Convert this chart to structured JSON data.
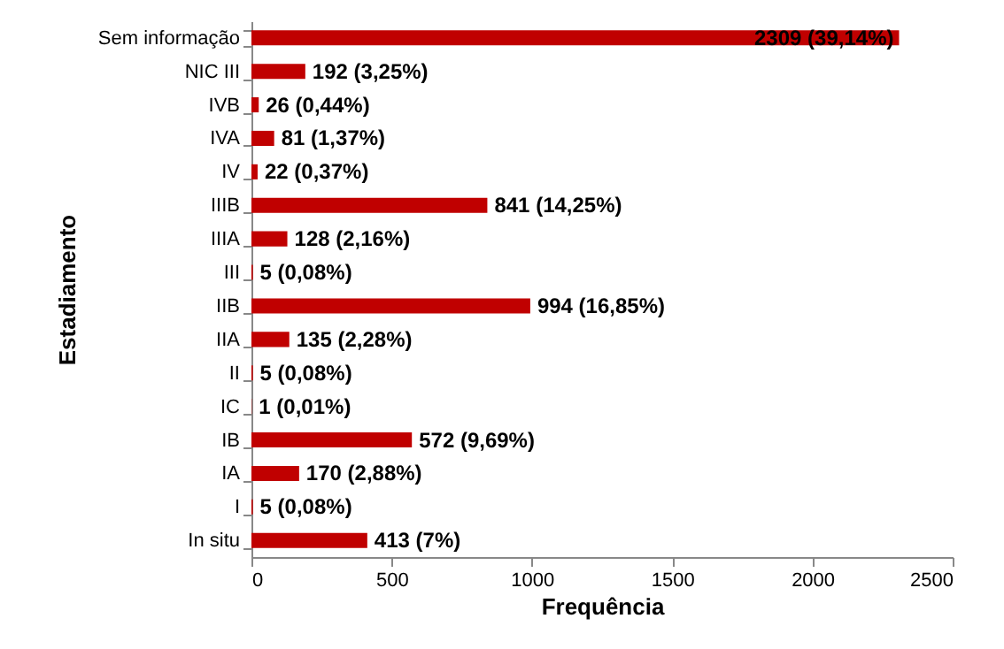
{
  "chart_data": {
    "type": "bar",
    "orientation": "horizontal",
    "xlabel": "Frequência",
    "ylabel": "Estadiamento",
    "categories": [
      "Sem informação",
      "NIC III",
      "IVB",
      "IVA",
      "IV",
      "IIIB",
      "IIIA",
      "III",
      "IIB",
      "IIA",
      "II",
      "IC",
      "IB",
      "IA",
      "I",
      "In situ"
    ],
    "values": [
      2309,
      192,
      26,
      81,
      22,
      841,
      128,
      5,
      994,
      135,
      5,
      1,
      572,
      170,
      5,
      413
    ],
    "value_labels": [
      "2309 (39,14%)",
      "192 (3,25%)",
      "26 (0,44%)",
      "81 (1,37%)",
      "22 (0,37%)",
      "841 (14,25%)",
      "128 (2,16%)",
      "5 (0,08%)",
      "994 (16,85%)",
      "135 (2,28%)",
      "5 (0,08%)",
      "1 (0,01%)",
      "572 (9,69%)",
      "170 (2,88%)",
      "5 (0,08%)",
      "413 (7%)"
    ],
    "color": "#c00000",
    "xlim": [
      0,
      2500
    ],
    "xticks": [
      0,
      500,
      1000,
      1500,
      2000,
      2500
    ],
    "grid": false
  }
}
